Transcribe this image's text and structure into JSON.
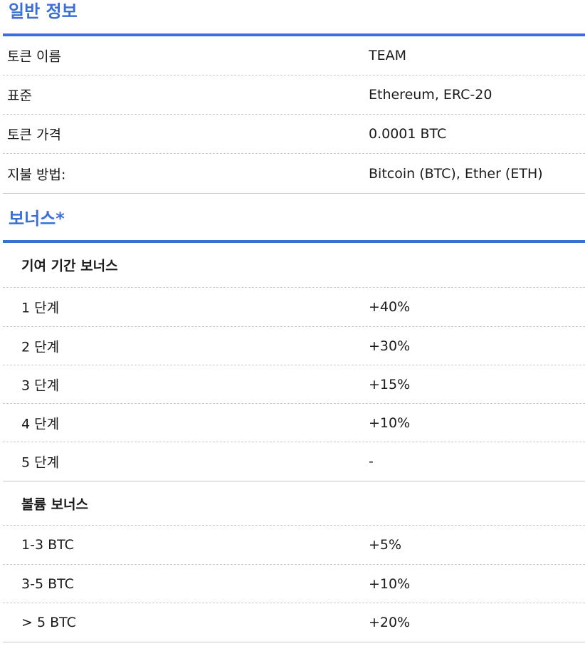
{
  "general": {
    "title": "일반 정보",
    "rows": [
      {
        "label": "토큰 이름",
        "value": "TEAM"
      },
      {
        "label": "표준",
        "value": "Ethereum, ERC-20"
      },
      {
        "label": "토큰 가격",
        "value": "0.0001 BTC"
      },
      {
        "label": "지불 방법:",
        "value": "Bitcoin (BTC), Ether (ETH)"
      }
    ]
  },
  "bonus": {
    "title": "보너스*",
    "contribution": {
      "heading": "기여 기간 보너스",
      "rows": [
        {
          "label": "1 단계",
          "value": "+40%"
        },
        {
          "label": "2 단계",
          "value": "+30%"
        },
        {
          "label": "3 단계",
          "value": "+15%"
        },
        {
          "label": "4 단계",
          "value": "+10%"
        },
        {
          "label": "5 단계",
          "value": "-"
        }
      ]
    },
    "volume": {
      "heading": "볼륨 보너스",
      "rows": [
        {
          "label": "1-3 BTC",
          "value": "+5%"
        },
        {
          "label": "3-5 BTC",
          "value": "+10%"
        },
        {
          "label": "> 5 BTC",
          "value": "+20%"
        }
      ]
    }
  }
}
